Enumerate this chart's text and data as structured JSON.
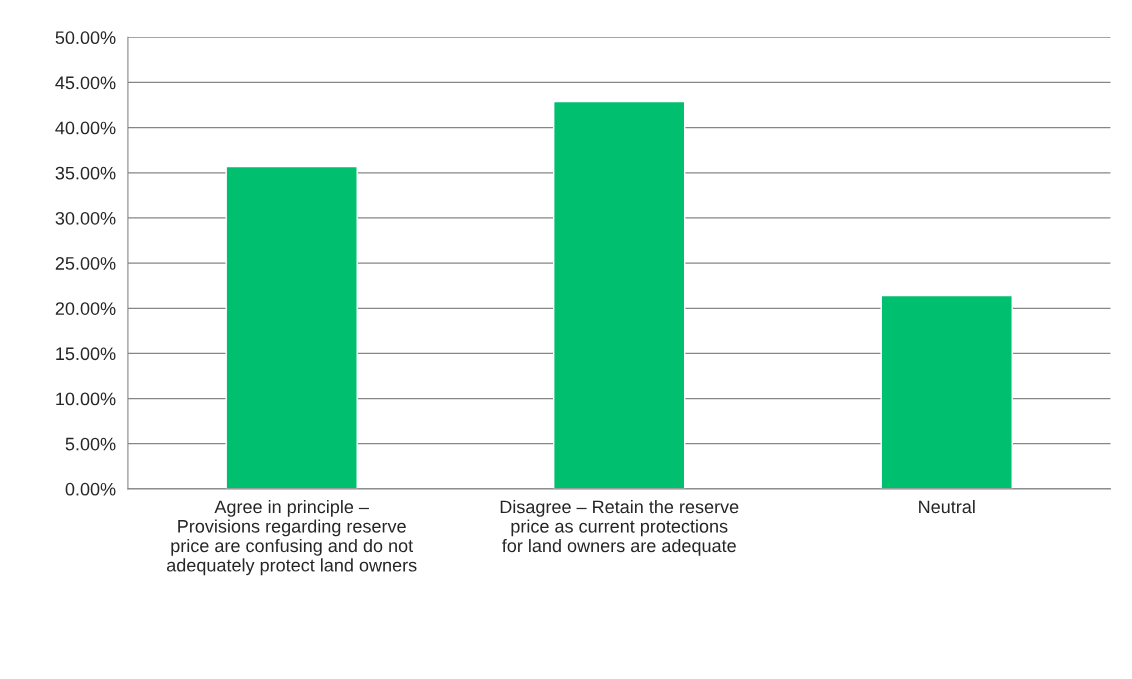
{
  "chart_data": {
    "type": "bar",
    "categories": [
      "Agree in principle – Provisions regarding reserve price are confusing and do not adequately protect land owners",
      "Disagree – Retain the reserve price as current protections for land owners are adequate",
      "Neutral"
    ],
    "values": [
      35.7,
      42.9,
      21.4
    ],
    "color": "#00bf6f",
    "ylim": [
      0,
      50
    ],
    "yticks": [
      {
        "value": 0,
        "label": "0.00%"
      },
      {
        "value": 5,
        "label": "5.00%"
      },
      {
        "value": 10,
        "label": "10.00%"
      },
      {
        "value": 15,
        "label": "15.00%"
      },
      {
        "value": 20,
        "label": "20.00%"
      },
      {
        "value": 25,
        "label": "25.00%"
      },
      {
        "value": 30,
        "label": "30.00%"
      },
      {
        "value": 35,
        "label": "35.00%"
      },
      {
        "value": 40,
        "label": "40.00%"
      },
      {
        "value": 45,
        "label": "45.00%"
      },
      {
        "value": 50,
        "label": "50.00%"
      }
    ],
    "grid": "y"
  }
}
